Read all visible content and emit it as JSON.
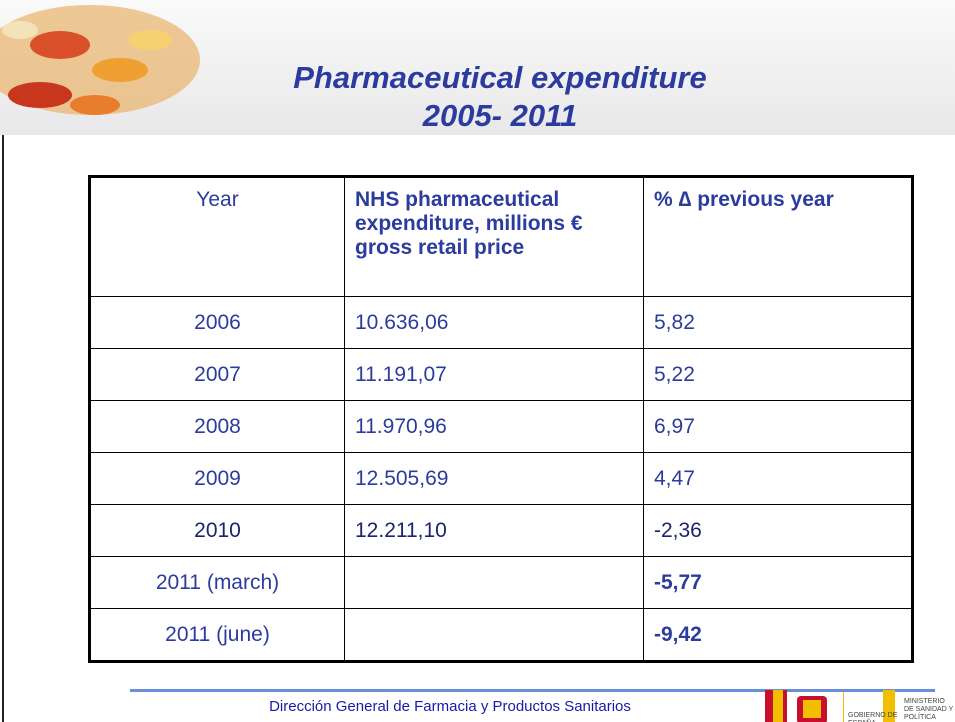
{
  "title": {
    "line1": "Pharmaceutical expenditure",
    "line2": "2005- 2011"
  },
  "table": {
    "headers": [
      "Year",
      "NHS pharmaceutical expenditure, millions € gross retail price",
      "% ∆ previous year"
    ],
    "rows": [
      {
        "year": "2006",
        "expenditure": "10.636,06",
        "change": "5,82"
      },
      {
        "year": "2007",
        "expenditure": "11.191,07",
        "change": "5,22"
      },
      {
        "year": "2008",
        "expenditure": "11.970,96",
        "change": "6,97"
      },
      {
        "year": "2009",
        "expenditure": "12.505,69",
        "change": "4,47"
      },
      {
        "year": "2010",
        "expenditure": "12.211,10",
        "change": "-2,36"
      },
      {
        "year": "2011 (march)",
        "change": "-5,77"
      },
      {
        "year": "2011 (june)",
        "change": "-9,42"
      }
    ]
  },
  "footer": {
    "text": "Dirección General de Farmacia y Productos Sanitarios",
    "logo_left": "GOBIERNO DE ESPAÑA",
    "logo_right": "MINISTERIO DE SANIDAD Y POLÍTICA SOCIAL"
  }
}
